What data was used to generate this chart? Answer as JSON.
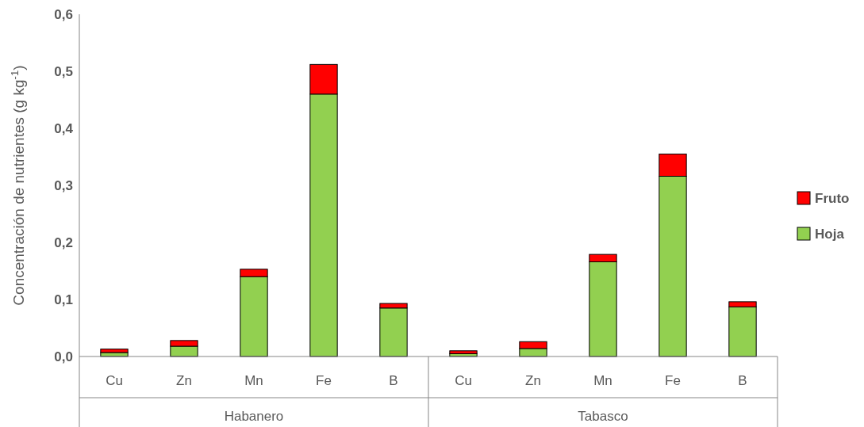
{
  "chart_data": {
    "type": "bar",
    "stacked": true,
    "ylabel": "Concentración de nutrientes (g kg$^{-1}$)",
    "categories": [
      "Cu",
      "Zn",
      "Mn",
      "Fe",
      "B",
      "Cu",
      "Zn",
      "Mn",
      "Fe",
      "B"
    ],
    "annotations": [
      "Habanero",
      "Tabasco"
    ],
    "series": [
      {
        "name": "Hoja",
        "color": "#92d050",
        "values": [
          0.007,
          0.018,
          0.14,
          0.46,
          0.085,
          0.005,
          0.014,
          0.166,
          0.316,
          0.087
        ]
      },
      {
        "name": "Fruto",
        "color": "#ff0000",
        "values": [
          0.006,
          0.01,
          0.013,
          0.052,
          0.008,
          0.005,
          0.012,
          0.013,
          0.039,
          0.009
        ]
      }
    ],
    "ylim": [
      0,
      0.6
    ],
    "yticks": [
      {
        "value": 0,
        "label": "0,0"
      },
      {
        "value": 0.1,
        "label": "0,1"
      },
      {
        "value": 0.2,
        "label": "0,2"
      },
      {
        "value": 0.3,
        "label": "0,3"
      },
      {
        "value": 0.4,
        "label": "0,4"
      },
      {
        "value": 0.5,
        "label": "0,5"
      },
      {
        "value": 0.6,
        "label": "0,6"
      }
    ],
    "grid": false,
    "legend": "right"
  }
}
